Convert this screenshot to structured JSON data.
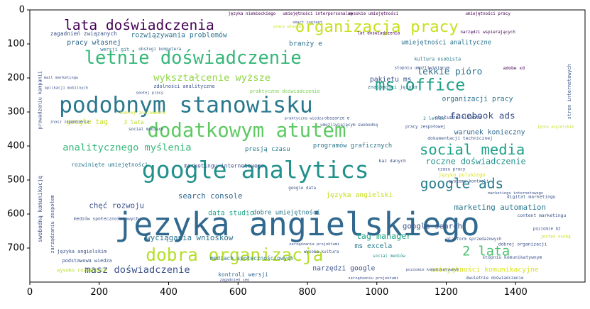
{
  "chart_data": {
    "type": "wordcloud",
    "xlim": [
      0,
      1600
    ],
    "ylim": [
      800,
      0
    ],
    "x_ticks": [
      0,
      200,
      400,
      600,
      800,
      1000,
      1200,
      1400
    ],
    "y_ticks": [
      0,
      100,
      200,
      300,
      400,
      500,
      600,
      700
    ],
    "words": [
      {
        "text": "języka angielskiego",
        "x": 770,
        "y": 630,
        "size": 92,
        "color": "#31688e"
      },
      {
        "text": "google analytics",
        "x": 650,
        "y": 470,
        "size": 68,
        "color": "#21918c"
      },
      {
        "text": "podobnym stanowisku",
        "x": 450,
        "y": 280,
        "size": 64,
        "color": "#2a788e"
      },
      {
        "text": "letnie doświadczenie",
        "x": 470,
        "y": 140,
        "size": 52,
        "color": "#35b779"
      },
      {
        "text": "dodatkowym atutem",
        "x": 625,
        "y": 355,
        "size": 56,
        "color": "#5ec962"
      },
      {
        "text": "dobra organizacja",
        "x": 590,
        "y": 720,
        "size": 50,
        "color": "#b5de2b"
      },
      {
        "text": "organizacja pracy",
        "x": 1000,
        "y": 50,
        "size": 46,
        "color": "#c8e020"
      },
      {
        "text": "lata doświadczenia",
        "x": 315,
        "y": 45,
        "size": 40,
        "color": "#440154"
      },
      {
        "text": "ms office",
        "x": 1125,
        "y": 220,
        "size": 48,
        "color": "#1fa088"
      },
      {
        "text": "social media",
        "x": 1275,
        "y": 410,
        "size": 42,
        "color": "#1fa088"
      },
      {
        "text": "google ads",
        "x": 1245,
        "y": 510,
        "size": 40,
        "color": "#287d8e"
      },
      {
        "text": "wykształcenie wyższe",
        "x": 525,
        "y": 200,
        "size": 28,
        "color": "#90d743"
      },
      {
        "text": "2 lata",
        "x": 1315,
        "y": 710,
        "size": 38,
        "color": "#4ac16d"
      },
      {
        "text": "analitycznego myślenia",
        "x": 280,
        "y": 405,
        "size": 28,
        "color": "#35b779"
      },
      {
        "text": "masz doświadczenie",
        "x": 310,
        "y": 765,
        "size": 28,
        "color": "#3b528b"
      },
      {
        "text": "facebook ads",
        "x": 1305,
        "y": 310,
        "size": 26,
        "color": "#3b528b"
      },
      {
        "text": "lekkie pióro",
        "x": 1210,
        "y": 180,
        "size": 26,
        "color": "#2c728e"
      },
      {
        "text": "organizacji pracy",
        "x": 1290,
        "y": 262,
        "size": 20,
        "color": "#2c728e"
      },
      {
        "text": "pakietu ms",
        "x": 1040,
        "y": 205,
        "size": 20,
        "color": "#3b528b"
      },
      {
        "text": "roczne doświadczenie",
        "x": 1285,
        "y": 445,
        "size": 24,
        "color": "#21918c"
      },
      {
        "text": "umiejętności komunikacyjne",
        "x": 1310,
        "y": 765,
        "size": 20,
        "color": "#d8e219"
      },
      {
        "text": "rozwiązywania problemów",
        "x": 430,
        "y": 75,
        "size": 20,
        "color": "#2c728e"
      },
      {
        "text": "pracy własnej",
        "x": 185,
        "y": 97,
        "size": 20,
        "color": "#31688e"
      },
      {
        "text": "tag manager",
        "x": 1020,
        "y": 665,
        "size": 24,
        "color": "#20a486"
      },
      {
        "text": "google search",
        "x": 1160,
        "y": 635,
        "size": 22,
        "color": "#3b528b"
      },
      {
        "text": "marketing automation",
        "x": 1355,
        "y": 580,
        "size": 22,
        "color": "#2a788e"
      },
      {
        "text": "wyciągania wniosków",
        "x": 460,
        "y": 670,
        "size": 22,
        "color": "#2c728e"
      },
      {
        "text": "ms excela",
        "x": 990,
        "y": 695,
        "size": 20,
        "color": "#2a788e"
      },
      {
        "text": "search console",
        "x": 520,
        "y": 547,
        "size": 22,
        "color": "#31688e"
      },
      {
        "text": "języka angielski",
        "x": 950,
        "y": 545,
        "size": 20,
        "color": "#c8e020"
      },
      {
        "text": "chęć rozwoju",
        "x": 250,
        "y": 575,
        "size": 22,
        "color": "#3b528b"
      },
      {
        "text": "data studio",
        "x": 580,
        "y": 598,
        "size": 20,
        "color": "#1fa088"
      },
      {
        "text": "dobre umiejętności",
        "x": 740,
        "y": 597,
        "size": 18,
        "color": "#2a788e"
      },
      {
        "text": "warunek konieczny",
        "x": 1325,
        "y": 360,
        "size": 20,
        "color": "#31688e"
      },
      {
        "text": "programów graficznych",
        "x": 930,
        "y": 400,
        "size": 18,
        "color": "#2a788e"
      },
      {
        "text": "presją czasu",
        "x": 685,
        "y": 410,
        "size": 18,
        "color": "#2a788e"
      },
      {
        "text": "marketingu internetowego",
        "x": 560,
        "y": 458,
        "size": 16,
        "color": "#3b528b"
      },
      {
        "text": "rozwinięte umiejętności",
        "x": 230,
        "y": 455,
        "size": 16,
        "color": "#2a788e"
      },
      {
        "text": "narzędzi google",
        "x": 905,
        "y": 760,
        "size": 20,
        "color": "#3b528b"
      },
      {
        "text": "mediach społecznościowych",
        "x": 640,
        "y": 730,
        "size": 16,
        "color": "#2c728e"
      },
      {
        "text": "kontroli wersji",
        "x": 615,
        "y": 778,
        "size": 16,
        "color": "#31688e"
      },
      {
        "text": "google tag",
        "x": 165,
        "y": 330,
        "size": 20,
        "color": "#c8e020"
      },
      {
        "text": "3 lata",
        "x": 300,
        "y": 330,
        "size": 16,
        "color": "#b5de2b"
      },
      {
        "text": "umiejętności analityczne",
        "x": 1200,
        "y": 97,
        "size": 18,
        "color": "#2c728e"
      },
      {
        "text": "branży e",
        "x": 795,
        "y": 100,
        "size": 20,
        "color": "#2c728e"
      },
      {
        "text": "zagadnień związanych",
        "x": 155,
        "y": 70,
        "size": 16,
        "color": "#3b528b"
      },
      {
        "text": "wersji git",
        "x": 245,
        "y": 117,
        "size": 14,
        "color": "#2a788e"
      },
      {
        "text": "obsługi komputera",
        "x": 375,
        "y": 117,
        "size": 12,
        "color": "#31688e"
      },
      {
        "text": "kultura osobista",
        "x": 1175,
        "y": 145,
        "size": 14,
        "color": "#2a788e"
      },
      {
        "text": "zdolności analityczne",
        "x": 445,
        "y": 225,
        "size": 14,
        "color": "#3b528b"
      },
      {
        "text": "praktyczne doświadczenie",
        "x": 735,
        "y": 240,
        "size": 14,
        "color": "#7ad151"
      },
      {
        "text": "znajomości języka",
        "x": 1045,
        "y": 227,
        "size": 14,
        "color": "#2c728e"
      },
      {
        "text": "adobe xd",
        "x": 1395,
        "y": 172,
        "size": 13,
        "color": "#440154"
      },
      {
        "text": "2 letnie",
        "x": 1165,
        "y": 320,
        "size": 13,
        "color": "#2a788e"
      },
      {
        "text": "obsłudze klienta",
        "x": 1235,
        "y": 317,
        "size": 14,
        "color": "#3b528b"
      },
      {
        "text": "dokumentacji technicznej",
        "x": 1240,
        "y": 378,
        "size": 13,
        "color": "#3b528b"
      },
      {
        "text": "dobrej znajomości",
        "x": 325,
        "y": 303,
        "size": 13,
        "color": "#c8e020"
      },
      {
        "text": "social mediach",
        "x": 335,
        "y": 352,
        "size": 12,
        "color": "#3b528b"
      },
      {
        "text": "wysokie umiejętności",
        "x": 990,
        "y": 12,
        "size": 12,
        "color": "#440154"
      },
      {
        "text": "umiejętności pracy",
        "x": 1320,
        "y": 12,
        "size": 12,
        "color": "#440154"
      },
      {
        "text": "języka niemieckiego",
        "x": 640,
        "y": 12,
        "size": 12,
        "color": "#440154"
      },
      {
        "text": "umiejętności interpersonalne",
        "x": 830,
        "y": 12,
        "size": 12,
        "color": "#440154"
      },
      {
        "text": "lat doświadczenia",
        "x": 1005,
        "y": 70,
        "size": 12,
        "color": "#440154"
      },
      {
        "text": "narzędzi wspierających",
        "x": 1320,
        "y": 67,
        "size": 12,
        "color": "#440154"
      },
      {
        "text": "prowadzeniu kampanii",
        "x": 30,
        "y": 265,
        "size": 14,
        "color": "#3b528b",
        "rotate": true
      },
      {
        "text": "swobodną komunikację",
        "x": 30,
        "y": 585,
        "size": 16,
        "color": "#3b528b",
        "rotate": true
      },
      {
        "text": "zarządzaniu zespołem",
        "x": 65,
        "y": 630,
        "size": 14,
        "color": "#3b528b",
        "rotate": true
      },
      {
        "text": "stron internetowych",
        "x": 1555,
        "y": 240,
        "size": 14,
        "color": "#3b528b",
        "rotate": true
      },
      {
        "text": "znasz zagadnienia",
        "x": 115,
        "y": 330,
        "size": 11,
        "color": "#3b528b"
      },
      {
        "text": "języka polskiego",
        "x": 1245,
        "y": 485,
        "size": 14,
        "color": "#d8e219"
      },
      {
        "text": "systemu kontroli",
        "x": 1265,
        "y": 505,
        "size": 12,
        "color": "#3b528b"
      },
      {
        "text": "czasu pracy",
        "x": 1215,
        "y": 470,
        "size": 12,
        "color": "#3b528b"
      },
      {
        "text": "digital marketingu",
        "x": 1445,
        "y": 550,
        "size": 13,
        "color": "#3b528b"
      },
      {
        "text": "content marketingu",
        "x": 1475,
        "y": 605,
        "size": 13,
        "color": "#3b528b"
      },
      {
        "text": "poziomie b2",
        "x": 1490,
        "y": 645,
        "size": 12,
        "color": "#3b528b"
      },
      {
        "text": "dobrej organizacji",
        "x": 1420,
        "y": 690,
        "size": 13,
        "color": "#3b528b"
      },
      {
        "text": "stopniu komunikatywnym",
        "x": 1390,
        "y": 728,
        "size": 13,
        "color": "#3b528b"
      },
      {
        "text": "dwuletnie doświadczenie",
        "x": 1340,
        "y": 790,
        "size": 12,
        "color": "#3b528b"
      },
      {
        "text": "jesteś osobą",
        "x": 1515,
        "y": 668,
        "size": 12,
        "color": "#c8e020"
      },
      {
        "text": "jęzka angielskim",
        "x": 1515,
        "y": 345,
        "size": 11,
        "color": "#c8e020"
      },
      {
        "text": "wysoka kultura",
        "x": 840,
        "y": 713,
        "size": 12,
        "color": "#3b528b"
      },
      {
        "text": "social mediów",
        "x": 1035,
        "y": 725,
        "size": 12,
        "color": "#21918c"
      },
      {
        "text": "platform sprzedażowych",
        "x": 1280,
        "y": 675,
        "size": 12,
        "color": "#3b528b"
      },
      {
        "text": "języka angielskim",
        "x": 150,
        "y": 710,
        "size": 14,
        "color": "#3b528b"
      },
      {
        "text": "podstawowa wiedza",
        "x": 165,
        "y": 738,
        "size": 14,
        "color": "#3b528b"
      },
      {
        "text": "wysoko rozwinięte",
        "x": 150,
        "y": 766,
        "size": 14,
        "color": "#b5de2b"
      },
      {
        "text": "zagadnień seo",
        "x": 590,
        "y": 795,
        "size": 11,
        "color": "#3b528b"
      },
      {
        "text": "zarządzania projektami",
        "x": 820,
        "y": 690,
        "size": 11,
        "color": "#3b528b"
      },
      {
        "text": "poziomie komunikatywnym",
        "x": 1160,
        "y": 765,
        "size": 11,
        "color": "#3b528b"
      },
      {
        "text": "zarządzaniu projektami",
        "x": 990,
        "y": 790,
        "size": 11,
        "color": "#3b528b"
      },
      {
        "text": "baz danych",
        "x": 1045,
        "y": 445,
        "size": 13,
        "color": "#3b528b"
      },
      {
        "text": "google data",
        "x": 785,
        "y": 525,
        "size": 12,
        "color": "#3b528b"
      },
      {
        "text": "umożliwiającym swobodną",
        "x": 920,
        "y": 340,
        "size": 12,
        "color": "#3b528b"
      },
      {
        "text": "pracy zespołowej",
        "x": 1140,
        "y": 345,
        "size": 12,
        "color": "#3b528b"
      },
      {
        "text": "obszarze e",
        "x": 885,
        "y": 320,
        "size": 12,
        "color": "#3b528b"
      },
      {
        "text": "praktyczna wiedza",
        "x": 790,
        "y": 320,
        "size": 11,
        "color": "#3b528b"
      },
      {
        "text": "mediów społecznościowych",
        "x": 220,
        "y": 615,
        "size": 13,
        "color": "#3b528b"
      },
      {
        "text": "smart content",
        "x": 800,
        "y": 37,
        "size": 11,
        "color": "#3b528b"
      },
      {
        "text": "pracy własnej",
        "x": 745,
        "y": 50,
        "size": 11,
        "color": "#c8e020"
      },
      {
        "text": "mail marketingu",
        "x": 90,
        "y": 200,
        "size": 11,
        "color": "#3b528b"
      },
      {
        "text": "aplikacji mobilnych",
        "x": 105,
        "y": 230,
        "size": 11,
        "color": "#3b528b"
      },
      {
        "text": "smołej pracy",
        "x": 345,
        "y": 245,
        "size": 11,
        "color": "#3b528b"
      },
      {
        "text": "stopniu umożliwiającym",
        "x": 1130,
        "y": 172,
        "size": 12,
        "color": "#3b528b"
      },
      {
        "text": "marketingu internetowego",
        "x": 1400,
        "y": 540,
        "size": 11,
        "color": "#3b528b"
      }
    ]
  }
}
